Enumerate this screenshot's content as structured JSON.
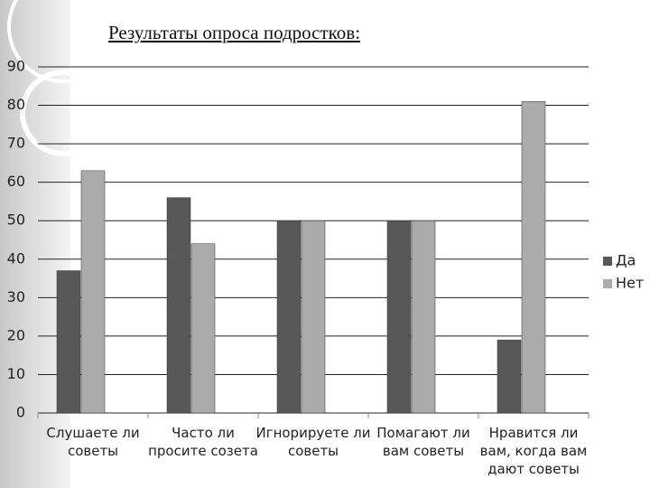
{
  "chart_data": {
    "type": "bar",
    "title": "Результаты опроса подростков:",
    "categories": [
      "Слушаете ли советы",
      "Часто ли просите созета",
      "Игнорируете ли советы",
      "Помагают ли вам советы",
      "Нравится ли вам, когда вам дают советы"
    ],
    "series": [
      {
        "name": "Да",
        "color": "#585858",
        "values": [
          37,
          56,
          50,
          50,
          19
        ]
      },
      {
        "name": "Нет",
        "color": "#ababab",
        "values": [
          63,
          44,
          50,
          50,
          81
        ]
      }
    ],
    "ylim": [
      0,
      90
    ],
    "yticks": [
      0,
      10,
      20,
      30,
      40,
      50,
      60,
      70,
      80,
      90
    ],
    "grid": true,
    "legend": "right"
  }
}
